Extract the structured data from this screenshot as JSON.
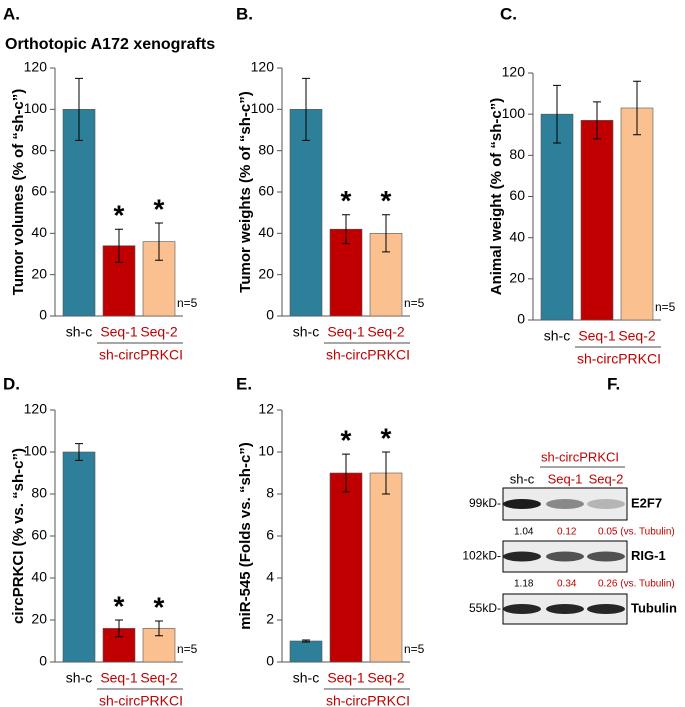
{
  "chart_data": [
    {
      "type": "bar",
      "label": "A.",
      "title": "Orthotopic A172 xenografts",
      "ylabel": "Tumor volumes (% of “sh-c”)",
      "categories": [
        "sh-c",
        "Seq-1",
        "Seq-2"
      ],
      "values": [
        100,
        34,
        36
      ],
      "errors": [
        15,
        8,
        9
      ],
      "colors": [
        "#2e7f9a",
        "#c00000",
        "#fac090"
      ],
      "label_colors": [
        "#000000",
        "#c00000",
        "#c00000"
      ],
      "significance": [
        null,
        "*",
        "*"
      ],
      "group_label": "sh-circPRKCI",
      "annotation": "n=5",
      "ylim": [
        0,
        120
      ],
      "yticks": [
        0,
        20,
        40,
        60,
        80,
        100,
        120
      ]
    },
    {
      "type": "bar",
      "label": "B.",
      "ylabel": "Tumor weights (% of “sh-c”)",
      "categories": [
        "sh-c",
        "Seq-1",
        "Seq-2"
      ],
      "values": [
        100,
        42,
        40
      ],
      "errors": [
        15,
        7,
        9
      ],
      "colors": [
        "#2e7f9a",
        "#c00000",
        "#fac090"
      ],
      "label_colors": [
        "#000000",
        "#c00000",
        "#c00000"
      ],
      "significance": [
        null,
        "*",
        "*"
      ],
      "group_label": "sh-circPRKCI",
      "annotation": "n=5",
      "ylim": [
        0,
        120
      ],
      "yticks": [
        0,
        20,
        40,
        60,
        80,
        100,
        120
      ]
    },
    {
      "type": "bar",
      "label": "C.",
      "ylabel": "Animal weight (% of “sh-c”)",
      "categories": [
        "sh-c",
        "Seq-1",
        "Seq-2"
      ],
      "values": [
        100,
        97,
        103
      ],
      "errors": [
        14,
        9,
        13
      ],
      "colors": [
        "#2e7f9a",
        "#c00000",
        "#fac090"
      ],
      "label_colors": [
        "#000000",
        "#c00000",
        "#c00000"
      ],
      "group_label": "sh-circPRKCI",
      "annotation": "n=5",
      "ylim": [
        0,
        120
      ],
      "yticks": [
        0,
        20,
        40,
        60,
        80,
        100,
        120
      ]
    },
    {
      "type": "bar",
      "label": "D.",
      "ylabel": "circPRKCI (% vs. “sh-c”)",
      "categories": [
        "sh-c",
        "Seq-1",
        "Seq-2"
      ],
      "values": [
        100,
        16,
        16
      ],
      "errors": [
        4,
        4,
        3.5
      ],
      "colors": [
        "#2e7f9a",
        "#c00000",
        "#fac090"
      ],
      "label_colors": [
        "#000000",
        "#c00000",
        "#c00000"
      ],
      "significance": [
        null,
        "*",
        "*"
      ],
      "group_label": "sh-circPRKCI",
      "annotation": "n=5",
      "ylim": [
        0,
        120
      ],
      "yticks": [
        0,
        20,
        40,
        60,
        80,
        100,
        120
      ]
    },
    {
      "type": "bar",
      "label": "E.",
      "ylabel": "miR-545 (Folds vs. “sh-c”)",
      "categories": [
        "sh-c",
        "Seq-1",
        "Seq-2"
      ],
      "values": [
        1,
        9,
        9
      ],
      "errors": [
        0.05,
        0.9,
        1.0
      ],
      "colors": [
        "#2e7f9a",
        "#c00000",
        "#fac090"
      ],
      "label_colors": [
        "#000000",
        "#c00000",
        "#c00000"
      ],
      "significance": [
        null,
        "*",
        "*"
      ],
      "group_label": "sh-circPRKCI",
      "annotation": "n=5",
      "ylim": [
        0,
        12
      ],
      "yticks": [
        0,
        2,
        4,
        6,
        8,
        10,
        12
      ]
    }
  ],
  "blot": {
    "label": "F.",
    "group_label": "sh-circPRKCI",
    "lanes": [
      "sh-c",
      "Seq-1",
      "Seq-2"
    ],
    "rows": [
      {
        "size": "99kD-",
        "name": "E2F7",
        "quant": [
          "1.04",
          "0.12",
          "0.05 (vs. Tubulin)"
        ]
      },
      {
        "size": "102kD-",
        "name": "RIG-1",
        "quant": [
          "1.18",
          "0.34",
          "0.26 (vs. Tubulin)"
        ]
      },
      {
        "size": "55kD-",
        "name": "Tubulin"
      }
    ]
  }
}
